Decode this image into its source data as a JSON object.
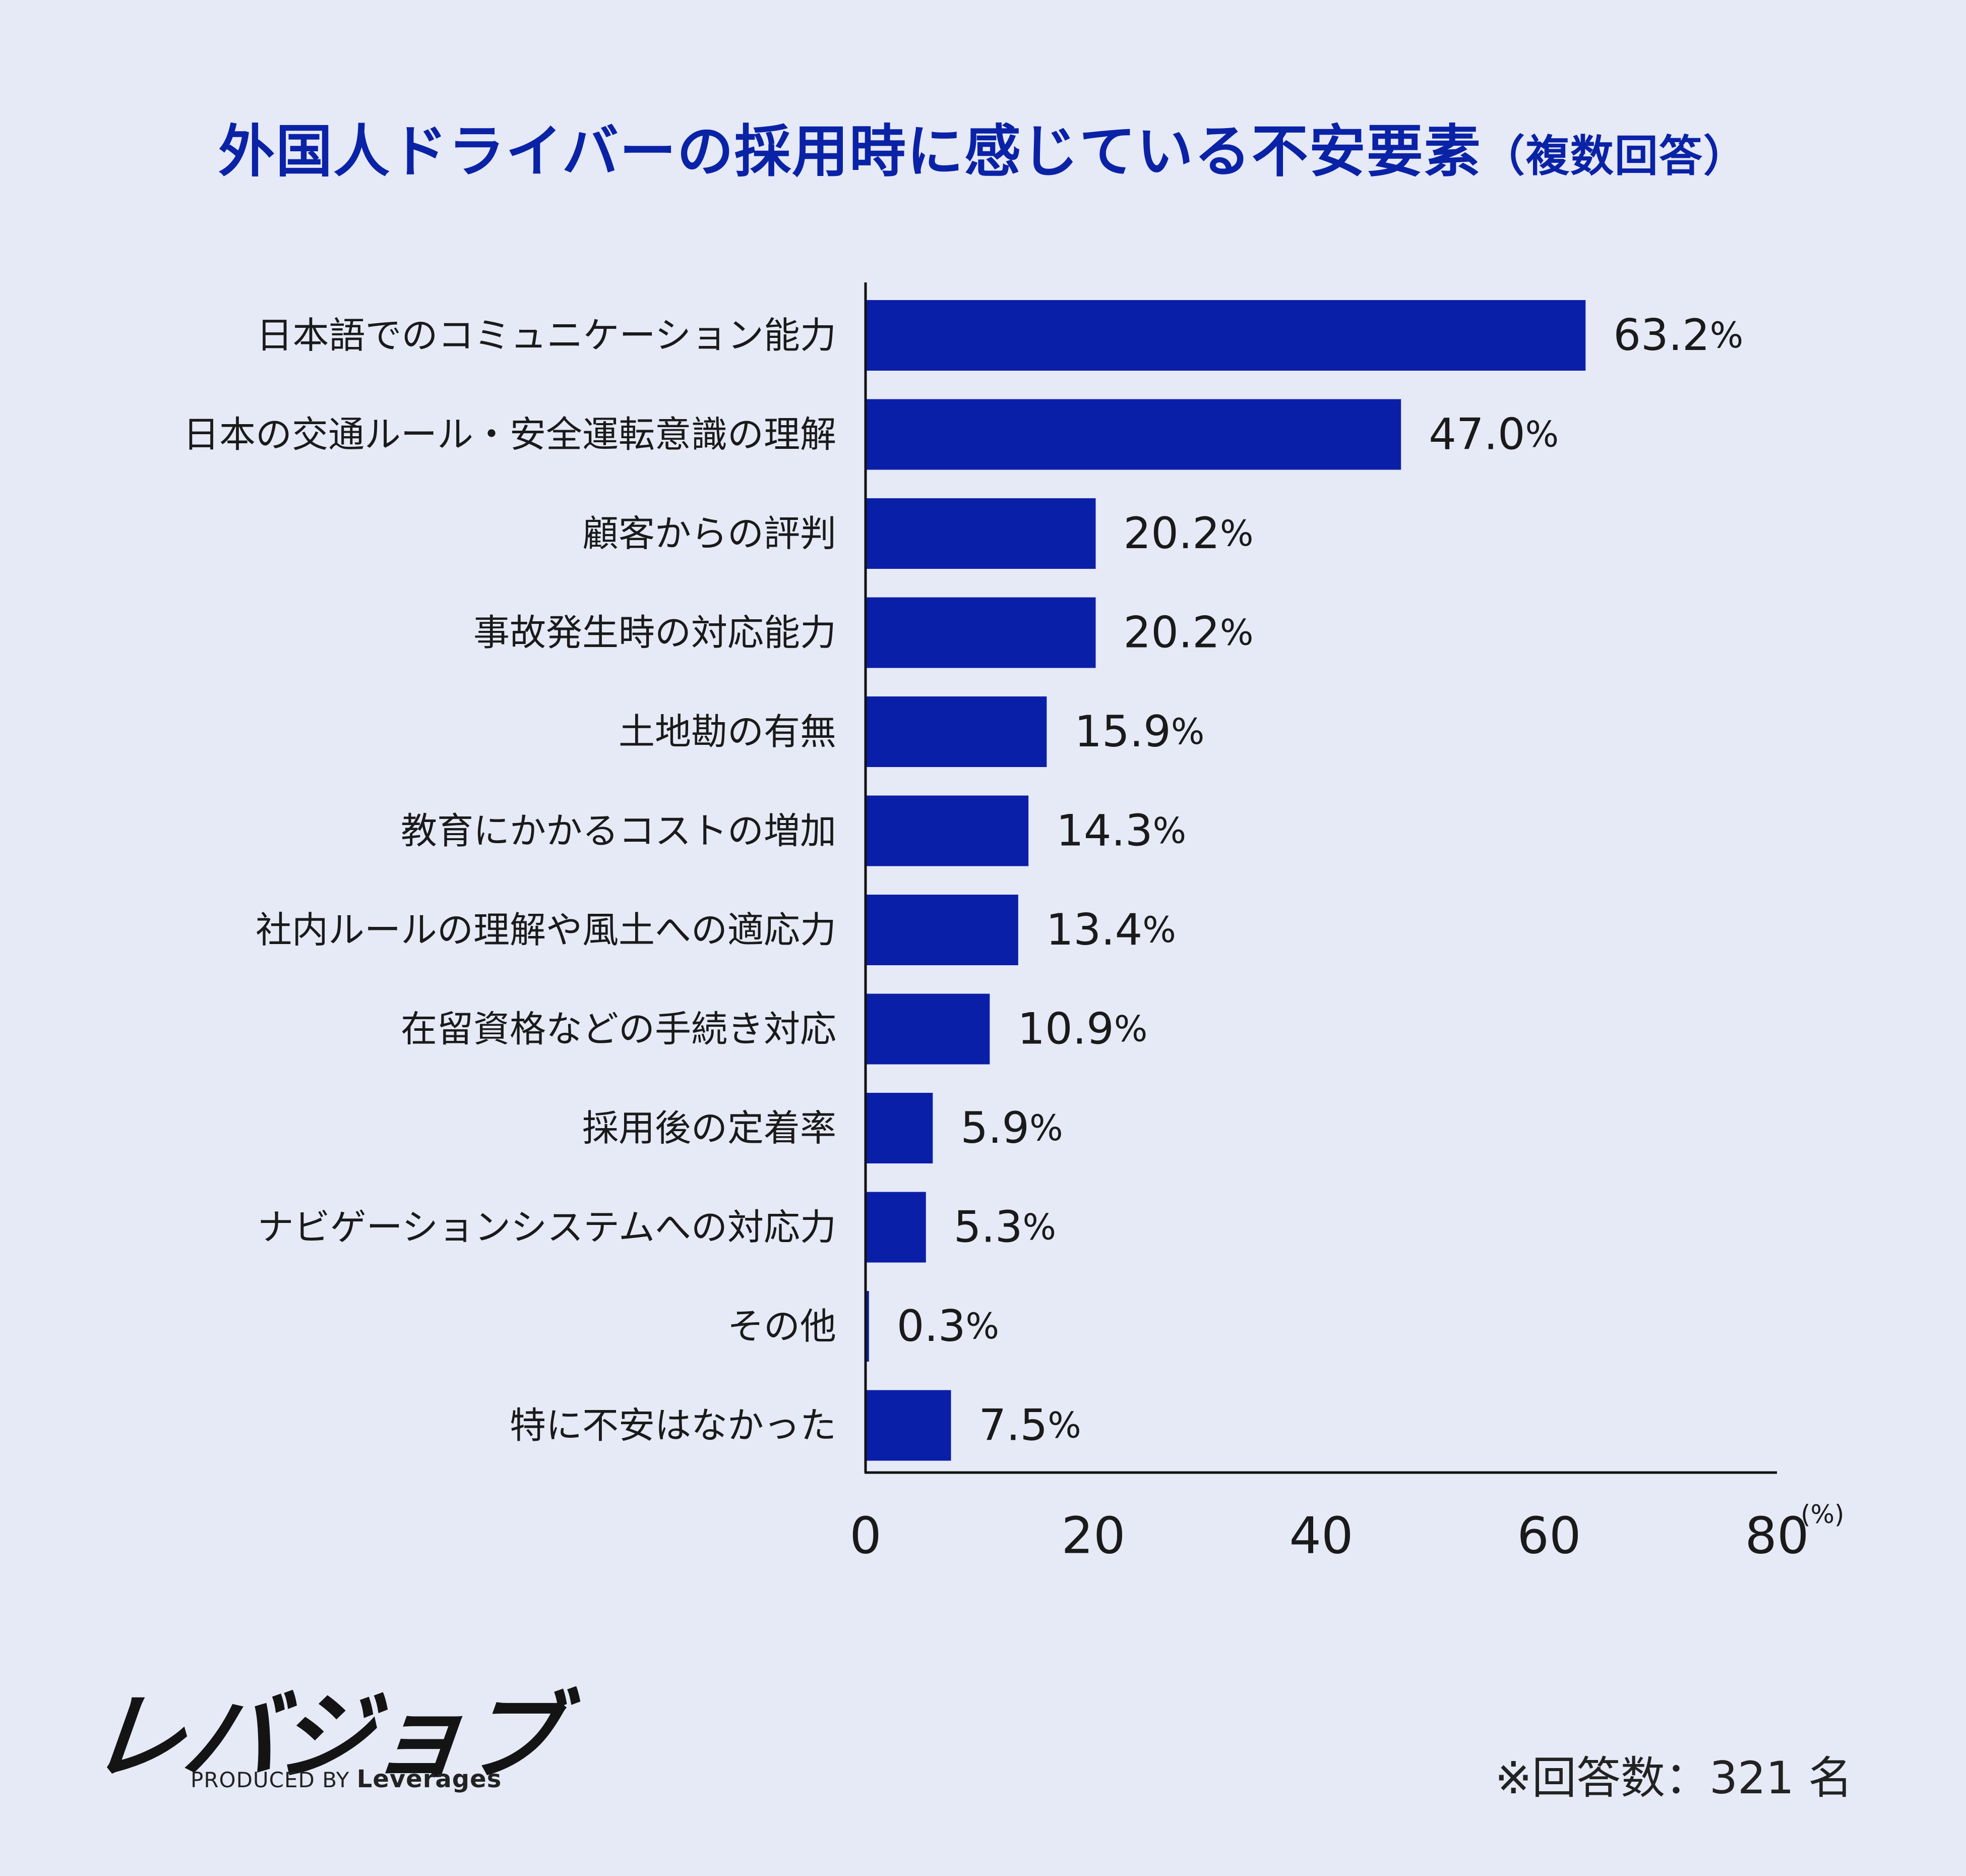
{
  "title": {
    "main": "外国人ドライバーの採用時に感じている不安要素",
    "sub": "（複数回答）"
  },
  "brand": {
    "logo": "レバジョブ",
    "produced_by": "PRODUCED BY",
    "company": "Leverages"
  },
  "footnote": "※回答数：321 名",
  "colors": {
    "background": "#e6e9f6",
    "bar": "#0a1fa8",
    "title": "#0a22a6",
    "text": "#1a1a1a"
  },
  "chart_data": {
    "type": "bar",
    "orientation": "horizontal",
    "categories": [
      "日本語でのコミュニケーション能力",
      "日本の交通ルール・安全運転意識の理解",
      "顧客からの評判",
      "事故発生時の対応能力",
      "土地勘の有無",
      "教育にかかるコストの増加",
      "社内ルールの理解や風土への適応力",
      "在留資格などの手続き対応",
      "採用後の定着率",
      "ナビゲーションシステムへの対応力",
      "その他",
      "特に不安はなかった"
    ],
    "values": [
      63.2,
      47.0,
      20.2,
      20.2,
      15.9,
      14.3,
      13.4,
      10.9,
      5.9,
      5.3,
      0.3,
      7.5
    ],
    "value_labels": [
      "63.2",
      "47.0",
      "20.2",
      "20.2",
      "15.9",
      "14.3",
      "13.4",
      "10.9",
      "5.9",
      "5.3",
      "0.3",
      "7.5"
    ],
    "value_unit": "%",
    "xlim": [
      0,
      80
    ],
    "xticks": [
      "0",
      "20",
      "40",
      "60",
      "80"
    ],
    "x_unit_label": "(%)",
    "grid": false
  }
}
